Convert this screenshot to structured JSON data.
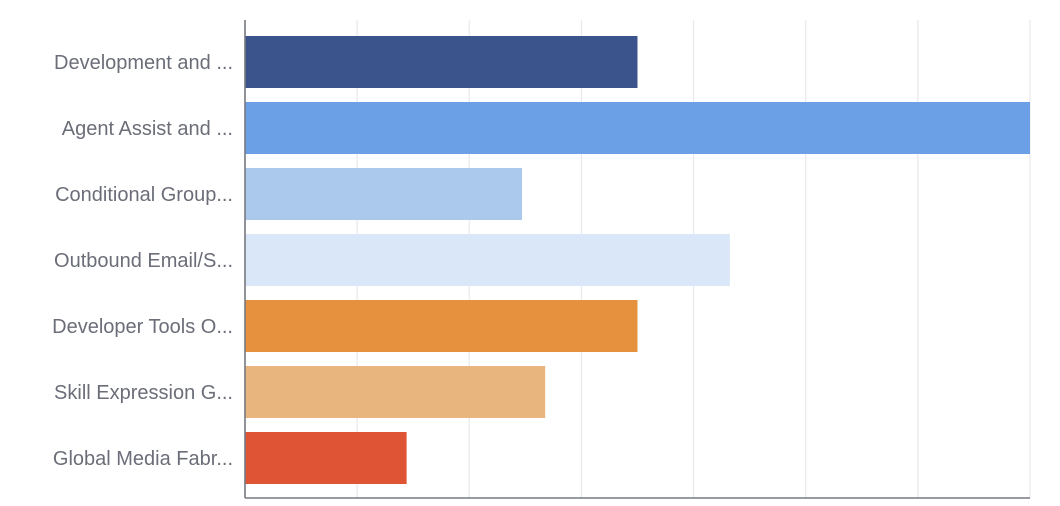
{
  "chart_data": {
    "type": "bar",
    "orientation": "horizontal",
    "categories": [
      "Development and ...",
      "Agent Assist and ...",
      "Conditional Group...",
      "Outbound Email/S...",
      "Developer Tools O...",
      "Skill Expression G...",
      "Global Media Fabr..."
    ],
    "values": [
      3.4,
      6.8,
      2.4,
      4.2,
      3.4,
      2.6,
      1.4
    ],
    "colors": [
      "#3b548b",
      "#6ca0e6",
      "#abc8ed",
      "#dae7f8",
      "#e6913e",
      "#e8b57f",
      "#e05436"
    ],
    "xlim": [
      0,
      6.8
    ],
    "grid": true,
    "title": "",
    "xlabel": "",
    "ylabel": ""
  }
}
